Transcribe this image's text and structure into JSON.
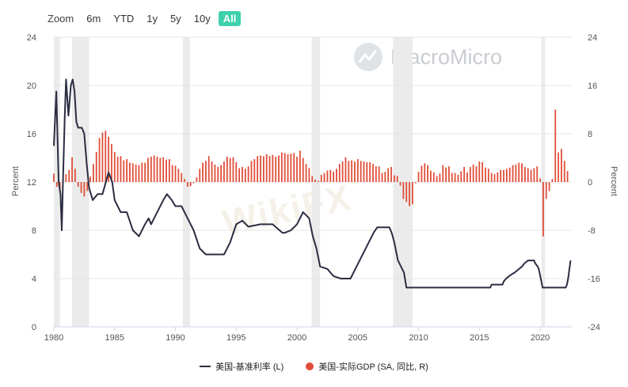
{
  "zoom": {
    "label": "Zoom",
    "options": [
      "6m",
      "YTD",
      "1y",
      "5y",
      "10y",
      "All"
    ],
    "active": "All"
  },
  "watermark": {
    "brand": "MacroMicro",
    "logo_icon": "chart-line-logo-icon"
  },
  "overlay_watermark": "WikiFX",
  "legend": {
    "prime_rate_label": "美国-基准利率 (L)",
    "gdp_label": "美国-实际GDP (SA, 同比, R)"
  },
  "colors": {
    "prime_rate": "#2b2d42",
    "gdp": "#e04e39",
    "recession": "#ebebeb",
    "zoom_active": "#3fd1ad"
  },
  "chart_data": {
    "type": "line+bar",
    "xlim": [
      1980,
      2022.6
    ],
    "x_ticks": [
      1980,
      1985,
      1990,
      1995,
      2000,
      2005,
      2010,
      2015,
      2020
    ],
    "left_axis": {
      "label": "Percent",
      "ylim": [
        0,
        24
      ],
      "ticks": [
        0,
        4,
        8,
        12,
        16,
        20,
        24
      ]
    },
    "right_axis": {
      "label": "Percent",
      "ylim": [
        -24,
        24
      ],
      "ticks": [
        -24,
        -16,
        -8,
        0,
        8,
        16,
        24
      ]
    },
    "recessions": [
      [
        1980.0,
        1980.5
      ],
      [
        1981.5,
        1982.9
      ],
      [
        1990.6,
        1991.2
      ],
      [
        2001.2,
        2001.9
      ],
      [
        2007.9,
        2009.5
      ],
      [
        2020.1,
        2020.4
      ]
    ],
    "series": [
      {
        "name": "美国-基准利率 (L)",
        "type": "line",
        "axis": "left",
        "points": [
          [
            1980.0,
            15.0
          ],
          [
            1980.2,
            19.5
          ],
          [
            1980.4,
            12.0
          ],
          [
            1980.55,
            11.0
          ],
          [
            1980.65,
            8.0
          ],
          [
            1980.75,
            12.0
          ],
          [
            1980.9,
            17.5
          ],
          [
            1981.0,
            20.5
          ],
          [
            1981.2,
            17.5
          ],
          [
            1981.4,
            20.0
          ],
          [
            1981.55,
            20.5
          ],
          [
            1981.7,
            19.5
          ],
          [
            1981.85,
            17.0
          ],
          [
            1982.0,
            16.5
          ],
          [
            1982.3,
            16.5
          ],
          [
            1982.5,
            16.0
          ],
          [
            1982.7,
            13.5
          ],
          [
            1982.9,
            11.5
          ],
          [
            1983.2,
            10.5
          ],
          [
            1983.6,
            11.0
          ],
          [
            1984.0,
            11.0
          ],
          [
            1984.5,
            12.8
          ],
          [
            1984.8,
            12.0
          ],
          [
            1985.0,
            10.5
          ],
          [
            1985.5,
            9.5
          ],
          [
            1986.0,
            9.5
          ],
          [
            1986.5,
            8.0
          ],
          [
            1987.0,
            7.5
          ],
          [
            1987.5,
            8.5
          ],
          [
            1987.8,
            9.0
          ],
          [
            1988.0,
            8.5
          ],
          [
            1988.5,
            9.5
          ],
          [
            1989.0,
            10.5
          ],
          [
            1989.3,
            11.0
          ],
          [
            1989.7,
            10.5
          ],
          [
            1990.0,
            10.0
          ],
          [
            1990.5,
            10.0
          ],
          [
            1991.0,
            9.0
          ],
          [
            1991.5,
            8.0
          ],
          [
            1992.0,
            6.5
          ],
          [
            1992.5,
            6.0
          ],
          [
            1993.0,
            6.0
          ],
          [
            1994.0,
            6.0
          ],
          [
            1994.5,
            7.0
          ],
          [
            1995.0,
            8.5
          ],
          [
            1995.5,
            8.8
          ],
          [
            1996.0,
            8.3
          ],
          [
            1997.0,
            8.5
          ],
          [
            1998.0,
            8.5
          ],
          [
            1998.8,
            7.8
          ],
          [
            1999.0,
            7.8
          ],
          [
            1999.5,
            8.0
          ],
          [
            2000.0,
            8.5
          ],
          [
            2000.5,
            9.5
          ],
          [
            2001.0,
            9.0
          ],
          [
            2001.3,
            7.5
          ],
          [
            2001.6,
            6.5
          ],
          [
            2001.9,
            5.0
          ],
          [
            2002.5,
            4.8
          ],
          [
            2003.0,
            4.2
          ],
          [
            2003.6,
            4.0
          ],
          [
            2004.4,
            4.0
          ],
          [
            2004.8,
            4.8
          ],
          [
            2005.3,
            5.8
          ],
          [
            2005.8,
            6.8
          ],
          [
            2006.3,
            7.8
          ],
          [
            2006.6,
            8.25
          ],
          [
            2007.6,
            8.25
          ],
          [
            2007.8,
            7.75
          ],
          [
            2008.0,
            7.0
          ],
          [
            2008.3,
            5.5
          ],
          [
            2008.8,
            4.5
          ],
          [
            2009.0,
            3.25
          ],
          [
            2015.9,
            3.25
          ],
          [
            2016.0,
            3.5
          ],
          [
            2016.9,
            3.5
          ],
          [
            2017.0,
            3.75
          ],
          [
            2017.2,
            4.0
          ],
          [
            2017.5,
            4.25
          ],
          [
            2017.9,
            4.5
          ],
          [
            2018.2,
            4.75
          ],
          [
            2018.5,
            5.0
          ],
          [
            2018.7,
            5.25
          ],
          [
            2019.0,
            5.5
          ],
          [
            2019.5,
            5.5
          ],
          [
            2019.6,
            5.25
          ],
          [
            2019.8,
            5.0
          ],
          [
            2019.9,
            4.75
          ],
          [
            2020.2,
            3.25
          ],
          [
            2022.1,
            3.25
          ],
          [
            2022.2,
            3.5
          ],
          [
            2022.3,
            4.0
          ],
          [
            2022.4,
            4.75
          ],
          [
            2022.5,
            5.5
          ]
        ]
      },
      {
        "name": "美国-实际GDP (SA, 同比, R)",
        "type": "bar",
        "axis": "right",
        "points": [
          [
            1980.0,
            1.4
          ],
          [
            1980.25,
            -0.8
          ],
          [
            1980.5,
            -1.6
          ],
          [
            1980.75,
            -0.3
          ],
          [
            1981.0,
            1.3
          ],
          [
            1981.25,
            2.0
          ],
          [
            1981.5,
            4.1
          ],
          [
            1981.75,
            2.2
          ],
          [
            1982.0,
            -0.8
          ],
          [
            1982.25,
            -1.8
          ],
          [
            1982.5,
            -2.4
          ],
          [
            1982.75,
            -1.5
          ],
          [
            1983.0,
            0.9
          ],
          [
            1983.25,
            3.0
          ],
          [
            1983.5,
            5.0
          ],
          [
            1983.75,
            7.3
          ],
          [
            1984.0,
            8.2
          ],
          [
            1984.25,
            8.5
          ],
          [
            1984.5,
            7.5
          ],
          [
            1984.75,
            6.3
          ],
          [
            1985.0,
            5.0
          ],
          [
            1985.25,
            4.2
          ],
          [
            1985.5,
            4.3
          ],
          [
            1985.75,
            3.6
          ],
          [
            1986.0,
            3.8
          ],
          [
            1986.25,
            3.2
          ],
          [
            1986.5,
            3.1
          ],
          [
            1986.75,
            2.9
          ],
          [
            1987.0,
            2.8
          ],
          [
            1987.25,
            3.2
          ],
          [
            1987.5,
            3.2
          ],
          [
            1987.75,
            4.0
          ],
          [
            1988.0,
            4.2
          ],
          [
            1988.25,
            4.4
          ],
          [
            1988.5,
            4.2
          ],
          [
            1988.75,
            4.0
          ],
          [
            1989.0,
            4.1
          ],
          [
            1989.25,
            3.7
          ],
          [
            1989.5,
            3.8
          ],
          [
            1989.75,
            2.8
          ],
          [
            1990.0,
            2.7
          ],
          [
            1990.25,
            2.2
          ],
          [
            1990.5,
            1.5
          ],
          [
            1990.75,
            0.5
          ],
          [
            1991.0,
            -0.8
          ],
          [
            1991.25,
            -0.7
          ],
          [
            1991.5,
            -0.2
          ],
          [
            1991.75,
            0.8
          ],
          [
            1992.0,
            2.2
          ],
          [
            1992.25,
            3.2
          ],
          [
            1992.5,
            3.5
          ],
          [
            1992.75,
            4.3
          ],
          [
            1993.0,
            3.4
          ],
          [
            1993.25,
            2.9
          ],
          [
            1993.5,
            2.5
          ],
          [
            1993.75,
            2.8
          ],
          [
            1994.0,
            3.4
          ],
          [
            1994.25,
            4.2
          ],
          [
            1994.5,
            4.0
          ],
          [
            1994.75,
            4.1
          ],
          [
            1995.0,
            3.3
          ],
          [
            1995.25,
            2.3
          ],
          [
            1995.5,
            2.5
          ],
          [
            1995.75,
            2.2
          ],
          [
            1996.0,
            2.6
          ],
          [
            1996.25,
            3.5
          ],
          [
            1996.5,
            3.8
          ],
          [
            1996.75,
            4.3
          ],
          [
            1997.0,
            4.4
          ],
          [
            1997.25,
            4.3
          ],
          [
            1997.5,
            4.6
          ],
          [
            1997.75,
            4.3
          ],
          [
            1998.0,
            4.5
          ],
          [
            1998.25,
            4.2
          ],
          [
            1998.5,
            4.4
          ],
          [
            1998.75,
            4.9
          ],
          [
            1999.0,
            4.8
          ],
          [
            1999.25,
            4.6
          ],
          [
            1999.5,
            4.7
          ],
          [
            1999.75,
            4.8
          ],
          [
            2000.0,
            4.2
          ],
          [
            2000.25,
            5.2
          ],
          [
            2000.5,
            4.0
          ],
          [
            2000.75,
            3.0
          ],
          [
            2001.0,
            2.3
          ],
          [
            2001.25,
            1.0
          ],
          [
            2001.5,
            0.4
          ],
          [
            2001.75,
            0.2
          ],
          [
            2002.0,
            1.2
          ],
          [
            2002.25,
            1.5
          ],
          [
            2002.5,
            1.9
          ],
          [
            2002.75,
            2.0
          ],
          [
            2003.0,
            1.7
          ],
          [
            2003.25,
            2.2
          ],
          [
            2003.5,
            3.0
          ],
          [
            2003.75,
            3.4
          ],
          [
            2004.0,
            4.1
          ],
          [
            2004.25,
            3.5
          ],
          [
            2004.5,
            3.6
          ],
          [
            2004.75,
            3.4
          ],
          [
            2005.0,
            3.8
          ],
          [
            2005.25,
            3.5
          ],
          [
            2005.5,
            3.4
          ],
          [
            2005.75,
            3.3
          ],
          [
            2006.0,
            3.3
          ],
          [
            2006.25,
            3.0
          ],
          [
            2006.5,
            2.6
          ],
          [
            2006.75,
            2.6
          ],
          [
            2007.0,
            1.5
          ],
          [
            2007.25,
            1.7
          ],
          [
            2007.5,
            2.3
          ],
          [
            2007.75,
            2.5
          ],
          [
            2008.0,
            1.1
          ],
          [
            2008.25,
            1.0
          ],
          [
            2008.5,
            -0.6
          ],
          [
            2008.75,
            -2.8
          ],
          [
            2009.0,
            -3.3
          ],
          [
            2009.25,
            -4.0
          ],
          [
            2009.5,
            -3.7
          ],
          [
            2009.75,
            -0.2
          ],
          [
            2010.0,
            1.7
          ],
          [
            2010.25,
            2.7
          ],
          [
            2010.5,
            3.1
          ],
          [
            2010.75,
            2.8
          ],
          [
            2011.0,
            1.9
          ],
          [
            2011.25,
            1.6
          ],
          [
            2011.5,
            1.0
          ],
          [
            2011.75,
            1.4
          ],
          [
            2012.0,
            2.8
          ],
          [
            2012.25,
            2.4
          ],
          [
            2012.5,
            2.6
          ],
          [
            2012.75,
            1.5
          ],
          [
            2013.0,
            1.5
          ],
          [
            2013.25,
            1.2
          ],
          [
            2013.5,
            1.8
          ],
          [
            2013.75,
            2.5
          ],
          [
            2014.0,
            1.6
          ],
          [
            2014.25,
            2.5
          ],
          [
            2014.5,
            2.9
          ],
          [
            2014.75,
            2.6
          ],
          [
            2015.0,
            3.4
          ],
          [
            2015.25,
            3.3
          ],
          [
            2015.5,
            2.4
          ],
          [
            2015.75,
            2.2
          ],
          [
            2016.0,
            1.5
          ],
          [
            2016.25,
            1.3
          ],
          [
            2016.5,
            1.6
          ],
          [
            2016.75,
            2.0
          ],
          [
            2017.0,
            2.0
          ],
          [
            2017.25,
            2.2
          ],
          [
            2017.5,
            2.4
          ],
          [
            2017.75,
            2.8
          ],
          [
            2018.0,
            2.9
          ],
          [
            2018.25,
            3.2
          ],
          [
            2018.5,
            3.1
          ],
          [
            2018.75,
            2.5
          ],
          [
            2019.0,
            2.3
          ],
          [
            2019.25,
            2.0
          ],
          [
            2019.5,
            2.3
          ],
          [
            2019.75,
            2.6
          ],
          [
            2020.0,
            0.6
          ],
          [
            2020.25,
            -9.0
          ],
          [
            2020.5,
            -2.8
          ],
          [
            2020.75,
            -1.5
          ],
          [
            2021.0,
            0.5
          ],
          [
            2021.25,
            12.0
          ],
          [
            2021.5,
            4.9
          ],
          [
            2021.75,
            5.5
          ],
          [
            2022.0,
            3.5
          ],
          [
            2022.25,
            1.8
          ]
        ]
      }
    ]
  }
}
